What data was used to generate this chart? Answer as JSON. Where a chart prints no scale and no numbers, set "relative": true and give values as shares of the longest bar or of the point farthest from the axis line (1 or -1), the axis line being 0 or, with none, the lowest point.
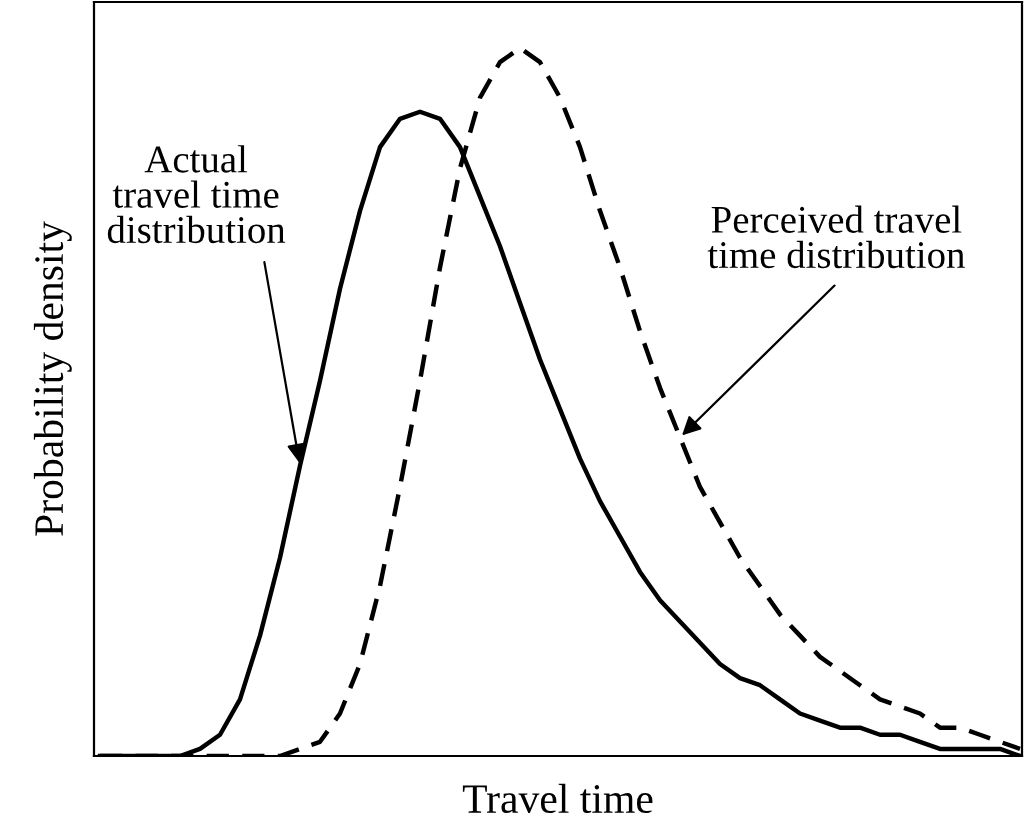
{
  "chart_data": {
    "type": "line",
    "relative": true,
    "xlabel": "Travel time",
    "ylabel": "Probability density",
    "tick_labels": false,
    "categories": [
      null,
      null,
      null,
      null,
      null,
      null,
      null,
      null,
      null,
      null,
      null,
      null,
      null,
      null,
      null,
      null,
      null,
      null,
      null,
      null,
      null,
      null,
      null,
      null,
      null,
      null,
      null,
      null,
      null,
      null,
      null,
      null,
      null,
      null,
      null,
      null,
      null,
      null,
      null,
      null,
      null,
      null,
      null,
      null,
      null,
      null,
      null
    ],
    "series": [
      {
        "color": "#000000",
        "line_style": "solid",
        "values": [
          0,
          0,
          0,
          0,
          0,
          0.01,
          0.03,
          0.08,
          0.17,
          0.28,
          0.41,
          0.53,
          0.66,
          0.77,
          0.86,
          0.9,
          0.91,
          0.9,
          0.86,
          0.79,
          0.72,
          0.64,
          0.56,
          0.49,
          0.42,
          0.36,
          0.31,
          0.26,
          0.22,
          0.19,
          0.16,
          0.13,
          0.11,
          0.1,
          0.08,
          0.06,
          0.05,
          0.04,
          0.04,
          0.03,
          0.03,
          0.02,
          0.01,
          0.01,
          0.01,
          0.01,
          0.0
        ]
      },
      {
        "color": "#000000",
        "line_style": "dashed",
        "values": [
          0,
          0,
          0,
          0,
          0,
          0,
          0,
          0,
          0,
          0,
          0.01,
          0.02,
          0.06,
          0.13,
          0.24,
          0.38,
          0.53,
          0.69,
          0.83,
          0.93,
          0.98,
          1.0,
          0.98,
          0.93,
          0.86,
          0.77,
          0.69,
          0.6,
          0.52,
          0.45,
          0.38,
          0.33,
          0.28,
          0.24,
          0.2,
          0.17,
          0.14,
          0.12,
          0.1,
          0.08,
          0.07,
          0.06,
          0.04,
          0.04,
          0.03,
          0.02,
          0.01
        ]
      }
    ],
    "annotations": [
      "Actual\ntravel time\ndistribution",
      "Perceived travel\ntime distribution"
    ]
  }
}
